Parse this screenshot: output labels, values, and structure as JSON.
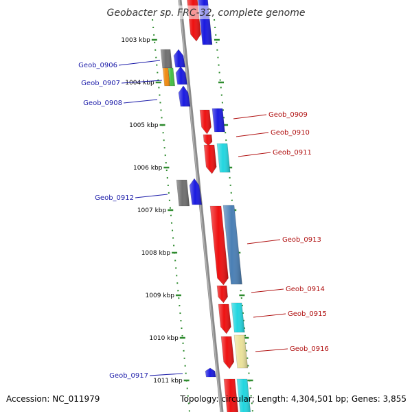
{
  "title": "Geobacter sp. FRC-32, complete genome",
  "footer": {
    "accession": "Accession: NC_011979",
    "topology": "Topology: circular; Length: 4,304,501 bp; Genes: 3,855"
  },
  "colors": {
    "backbone": "#7d7d7d",
    "tick": "#2e8b2e",
    "left_label": "#1a1aa8",
    "right_label": "#b01010",
    "red": "#ee1111",
    "blue": "#1a1ae0",
    "cyan": "#22d6e0",
    "steelblue": "#4a7fb5",
    "grey": "#707070",
    "orange": "#f08a10",
    "green": "#44c044",
    "khaki": "#ebe29a"
  },
  "ticks": [
    "1003 kbp",
    "1004 kbp",
    "1005 kbp",
    "1006 kbp",
    "1007 kbp",
    "1008 kbp",
    "1009 kbp",
    "1010 kbp",
    "1011 kbp"
  ],
  "genes_left": [
    "Geob_0906",
    "Geob_0907",
    "Geob_0908",
    "Geob_0912",
    "Geob_0917"
  ],
  "genes_right": [
    "Geob_0909",
    "Geob_0910",
    "Geob_0911",
    "Geob_0913",
    "Geob_0914",
    "Geob_0915",
    "Geob_0916"
  ]
}
